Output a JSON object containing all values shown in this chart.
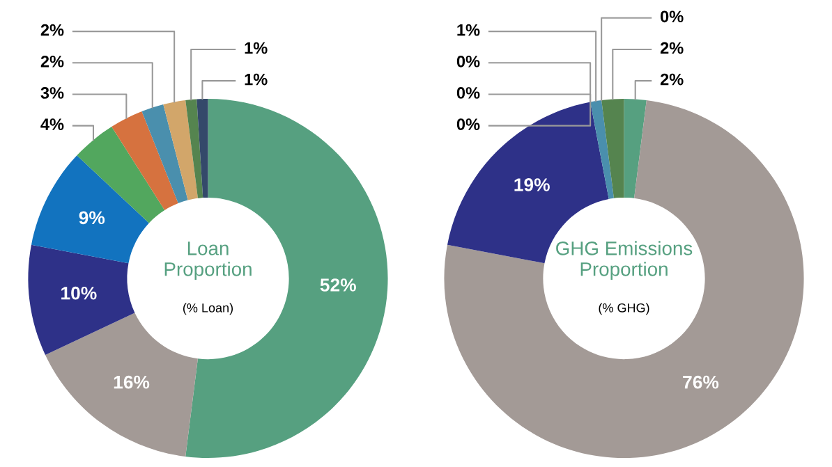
{
  "chart_data": [
    {
      "type": "donut",
      "title": "Loan Proportion",
      "subtitle": "(% Loan)",
      "value_labels": [
        "52%",
        "16%",
        "10%",
        "9%",
        "4%",
        "3%",
        "2%",
        "2%",
        "1%",
        "1%"
      ],
      "categories": [
        null,
        null,
        null,
        null,
        null,
        null,
        null,
        null,
        null,
        null
      ],
      "values": [
        52,
        16,
        10,
        9,
        4,
        3,
        2,
        2,
        1,
        1
      ],
      "colors": [
        "#56a080",
        "#a39a96",
        "#2e3188",
        "#1273bf",
        "#52a75e",
        "#d6723f",
        "#4a8fad",
        "#d2a66a",
        "#55844f",
        "#34496a"
      ]
    },
    {
      "type": "donut",
      "title": "GHG Emissions Proportion",
      "subtitle": "(% GHG)",
      "value_labels": [
        "2%",
        "76%",
        "19%",
        "0%",
        "0%",
        "0%",
        "1%",
        "0%",
        "2%"
      ],
      "categories": [
        null,
        null,
        null,
        null,
        null,
        null,
        null,
        null,
        null
      ],
      "values": [
        2,
        76,
        19,
        0,
        0,
        0,
        1,
        0,
        2
      ],
      "colors": [
        "#56a080",
        "#a39a96",
        "#2e3188",
        "#1273bf",
        "#52a75e",
        "#d6723f",
        "#4a8fad",
        "#d2a66a",
        "#55844f"
      ]
    }
  ]
}
